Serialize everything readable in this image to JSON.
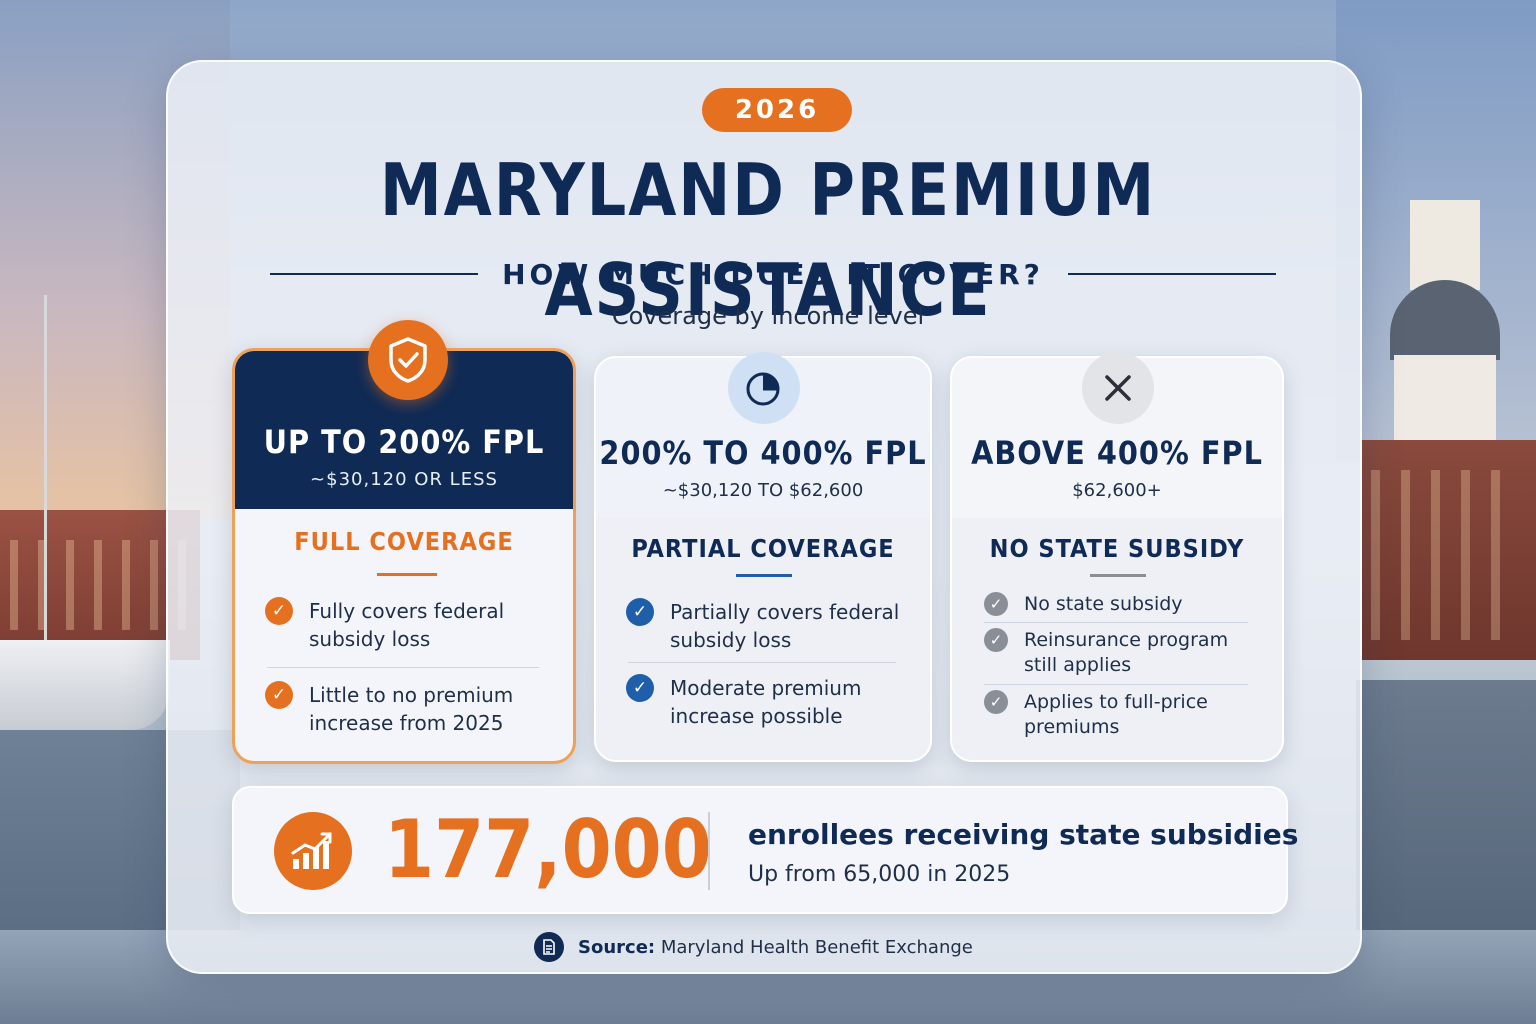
{
  "badge": {
    "year": "2026"
  },
  "header": {
    "title": "MARYLAND PREMIUM ASSISTANCE",
    "subtitle": "HOW MUCH DOES IT COVER?",
    "caption": "Coverage by income level"
  },
  "tiers": [
    {
      "icon": "shield-check-icon",
      "title": "UP TO 200% FPL",
      "range": "~$30,120 OR LESS",
      "coverage": "FULL COVERAGE",
      "items": [
        "Fully covers federal subsidy loss",
        "Little to no premium increase from 2025"
      ]
    },
    {
      "icon": "pie-chart-icon",
      "title": "200% TO 400% FPL",
      "range": "~$30,120 TO $62,600",
      "coverage": "PARTIAL COVERAGE",
      "items": [
        "Partially covers federal subsidy loss",
        "Moderate premium increase possible"
      ]
    },
    {
      "icon": "x-icon",
      "title": "ABOVE 400% FPL",
      "range": "$62,600+",
      "coverage": "NO STATE SUBSIDY",
      "items": [
        "No state subsidy",
        "Reinsurance program still applies",
        "Applies to full-price premiums"
      ]
    }
  ],
  "stats": {
    "icon": "growth-chart-icon",
    "number": "177,000",
    "line1": "enrollees receiving state subsidies",
    "line2": "Up from 65,000 in 2025"
  },
  "source": {
    "icon": "document-icon",
    "label": "Source:",
    "text": "Maryland Health Benefit Exchange"
  },
  "colors": {
    "navy": "#0f2a55",
    "orange": "#e5701f",
    "blue": "#1f5faa",
    "gray": "#8a8f97"
  }
}
